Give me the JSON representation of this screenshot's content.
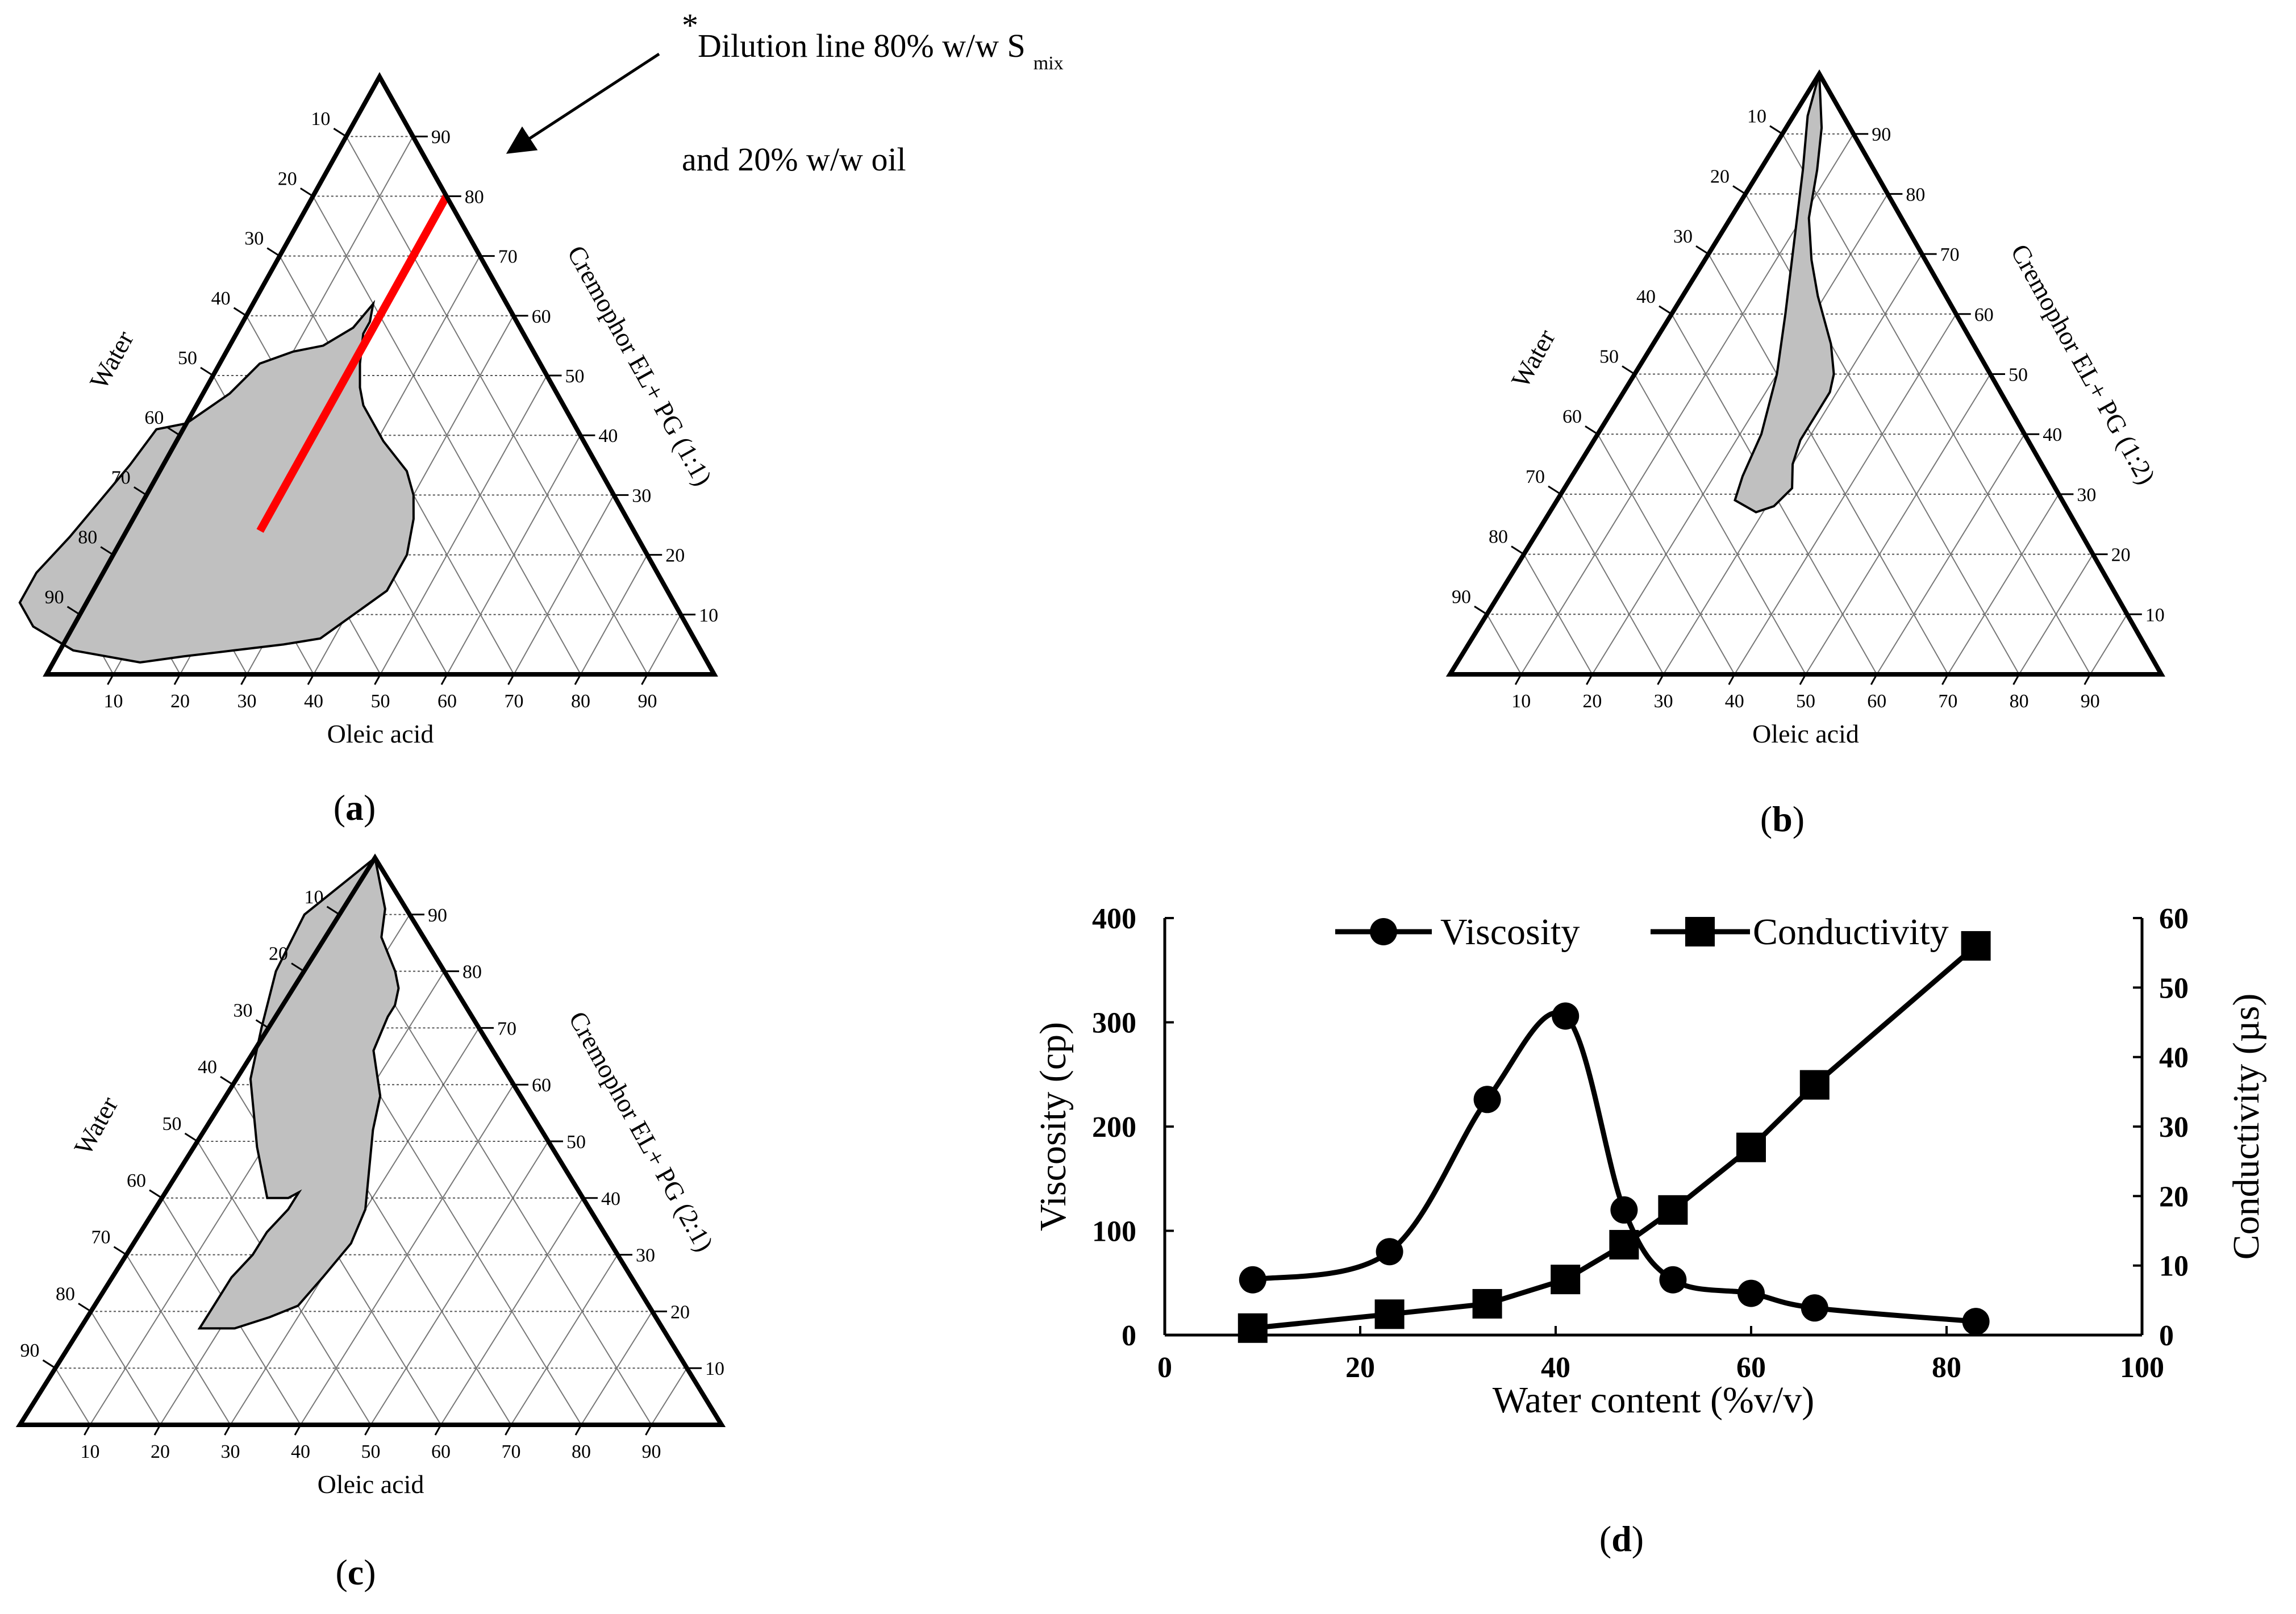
{
  "annotation": {
    "star": "*",
    "line1": "Dilution line 80% w/w S",
    "line1_sub": "mix",
    "line2": "and 20% w/w oil"
  },
  "panel_labels": {
    "a": "a",
    "b": "b",
    "c": "c",
    "d": "d"
  },
  "chart_data": [
    {
      "id": "a",
      "type": "ternary-phase-diagram",
      "left_axis_title": "Water",
      "right_axis_title": "Cremophor EL+ PG (1:1)",
      "bottom_axis_title": "Oleic acid",
      "left_ticks": [
        "10",
        "20",
        "30",
        "40",
        "50",
        "60",
        "70",
        "80",
        "90"
      ],
      "right_ticks": [
        "90",
        "80",
        "70",
        "60",
        "50",
        "40",
        "30",
        "20",
        "10"
      ],
      "bottom_ticks": [
        "10",
        "20",
        "30",
        "40",
        "50",
        "60",
        "70",
        "80",
        "90"
      ],
      "region": [
        [
          0.62,
          0.2
        ],
        [
          0.58,
          0.25
        ],
        [
          0.55,
          0.31
        ],
        [
          0.54,
          0.36
        ],
        [
          0.52,
          0.42
        ],
        [
          0.47,
          0.49
        ],
        [
          0.42,
          0.58
        ],
        [
          0.41,
          0.63
        ],
        [
          0.35,
          0.7
        ],
        [
          0.27,
          0.8
        ],
        [
          0.23,
          0.85
        ],
        [
          0.17,
          0.93
        ],
        [
          0.12,
          0.98
        ],
        [
          0.08,
          0.98
        ],
        [
          0.04,
          0.94
        ],
        [
          0.02,
          0.85
        ],
        [
          0.03,
          0.78
        ],
        [
          0.04,
          0.7
        ],
        [
          0.05,
          0.62
        ],
        [
          0.06,
          0.56
        ],
        [
          0.1,
          0.49
        ],
        [
          0.14,
          0.42
        ],
        [
          0.2,
          0.36
        ],
        [
          0.26,
          0.32
        ],
        [
          0.3,
          0.3
        ],
        [
          0.34,
          0.29
        ],
        [
          0.39,
          0.3
        ],
        [
          0.45,
          0.3
        ],
        [
          0.48,
          0.29
        ],
        [
          0.52,
          0.27
        ],
        [
          0.57,
          0.24
        ],
        [
          0.59,
          0.22
        ]
      ],
      "dilution_line": [
        [
          0.8,
          0.0
        ],
        [
          0.24,
          0.56
        ]
      ]
    },
    {
      "id": "b",
      "type": "ternary-phase-diagram",
      "left_axis_title": "Water",
      "right_axis_title": "Cremophor EL+ PG (1:2)",
      "bottom_axis_title": "Oleic acid",
      "left_ticks": [
        "10",
        "20",
        "30",
        "40",
        "50",
        "60",
        "70",
        "80",
        "90"
      ],
      "right_ticks": [
        "90",
        "80",
        "70",
        "60",
        "50",
        "40",
        "30",
        "20",
        "10"
      ],
      "bottom_ticks": [
        "10",
        "20",
        "30",
        "40",
        "50",
        "60",
        "70",
        "80",
        "90"
      ],
      "region": [
        [
          1.0,
          0.0
        ],
        [
          0.91,
          0.04
        ],
        [
          0.84,
          0.08
        ],
        [
          0.76,
          0.13
        ],
        [
          0.69,
          0.16
        ],
        [
          0.63,
          0.18
        ],
        [
          0.55,
          0.2
        ],
        [
          0.5,
          0.22
        ],
        [
          0.47,
          0.24
        ],
        [
          0.43,
          0.28
        ],
        [
          0.39,
          0.32
        ],
        [
          0.35,
          0.35
        ],
        [
          0.31,
          0.37
        ],
        [
          0.28,
          0.41
        ],
        [
          0.27,
          0.44
        ],
        [
          0.29,
          0.46
        ],
        [
          0.33,
          0.43
        ],
        [
          0.4,
          0.37
        ],
        [
          0.5,
          0.3
        ],
        [
          0.6,
          0.24
        ],
        [
          0.72,
          0.17
        ],
        [
          0.84,
          0.1
        ],
        [
          0.93,
          0.05
        ]
      ]
    },
    {
      "id": "c",
      "type": "ternary-phase-diagram",
      "left_axis_title": "Water",
      "right_axis_title": "Cremophor EL+ PG (2:1)",
      "bottom_axis_title": "Oleic acid",
      "left_ticks": [
        "10",
        "20",
        "30",
        "40",
        "50",
        "60",
        "70",
        "80",
        "90"
      ],
      "right_ticks": [
        "90",
        "80",
        "70",
        "60",
        "50",
        "40",
        "30",
        "20",
        "10"
      ],
      "bottom_ticks": [
        "10",
        "20",
        "30",
        "40",
        "50",
        "60",
        "70",
        "80",
        "90"
      ],
      "region": [
        [
          0.91,
          0.03
        ],
        [
          0.86,
          0.06
        ],
        [
          0.8,
          0.07
        ],
        [
          0.77,
          0.08
        ],
        [
          0.74,
          0.1
        ],
        [
          0.72,
          0.12
        ],
        [
          0.66,
          0.17
        ],
        [
          0.58,
          0.2
        ],
        [
          0.52,
          0.24
        ],
        [
          0.45,
          0.28
        ],
        [
          0.38,
          0.32
        ],
        [
          0.32,
          0.37
        ],
        [
          0.26,
          0.44
        ],
        [
          0.21,
          0.5
        ],
        [
          0.19,
          0.55
        ],
        [
          0.17,
          0.61
        ],
        [
          0.17,
          0.66
        ],
        [
          0.22,
          0.61
        ],
        [
          0.26,
          0.57
        ],
        [
          0.3,
          0.52
        ],
        [
          0.34,
          0.48
        ],
        [
          0.38,
          0.43
        ],
        [
          0.41,
          0.4
        ],
        [
          0.4,
          0.42
        ],
        [
          0.4,
          0.45
        ],
        [
          0.49,
          0.42
        ],
        [
          0.61,
          0.37
        ],
        [
          0.7,
          0.31
        ],
        [
          0.8,
          0.24
        ],
        [
          0.9,
          0.15
        ],
        [
          1.0,
          0.0
        ]
      ]
    },
    {
      "id": "d",
      "type": "line",
      "xlabel": "Water content (%v/v)",
      "ylabel": "Viscosity (cp)",
      "y2label": "Conductivity (µs)",
      "xlim": [
        0,
        100
      ],
      "ylim": [
        0,
        400
      ],
      "y2lim": [
        0,
        60
      ],
      "xticks": [
        0,
        20,
        40,
        60,
        80,
        100
      ],
      "yticks": [
        0,
        100,
        200,
        300,
        400
      ],
      "y2ticks": [
        0,
        10,
        20,
        30,
        40,
        50,
        60
      ],
      "legend_position": "top",
      "series": [
        {
          "name": "Viscosity",
          "axis": "left",
          "marker": "circle",
          "x": [
            9,
            23,
            33,
            41,
            47,
            52,
            60,
            66.5,
            83
          ],
          "values": [
            53,
            80,
            226,
            306,
            120,
            53,
            40,
            26,
            13
          ]
        },
        {
          "name": "Conductivity",
          "axis": "right",
          "marker": "square",
          "x": [
            9,
            23,
            33,
            41,
            47,
            52,
            60,
            66.5,
            83
          ],
          "values": [
            1,
            3,
            4.5,
            8,
            13,
            18,
            27,
            36,
            56
          ]
        }
      ]
    }
  ]
}
